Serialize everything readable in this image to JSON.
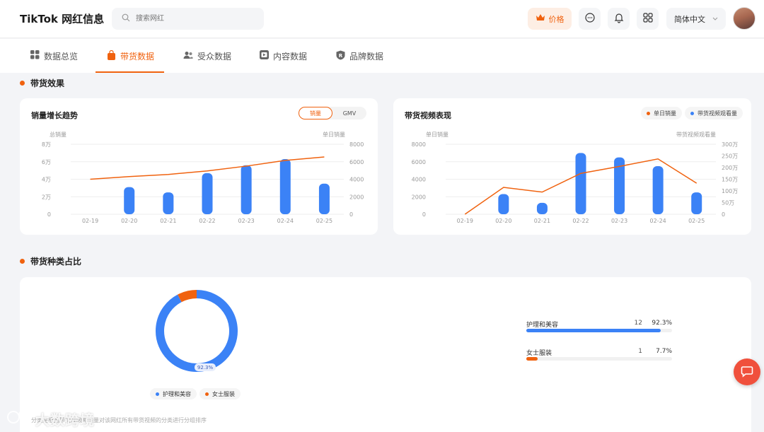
{
  "header": {
    "title": "TikTok 网红信息",
    "search_placeholder": "搜索网红",
    "price_label": "价格",
    "language": "简体中文"
  },
  "tabs": [
    {
      "label": "数据总览",
      "icon": "grid-icon"
    },
    {
      "label": "带货数据",
      "icon": "bag-icon",
      "active": true
    },
    {
      "label": "受众数据",
      "icon": "people-icon"
    },
    {
      "label": "内容数据",
      "icon": "video-icon"
    },
    {
      "label": "品牌数据",
      "icon": "brand-icon"
    }
  ],
  "section1": {
    "title": "带货效果"
  },
  "section2": {
    "title": "带货种类占比"
  },
  "colors": {
    "accent": "#f0620f",
    "blue": "#3b82f6"
  },
  "sales_chart": {
    "title": "销量增长趋势",
    "toggle": {
      "sales": "销量",
      "gmv": "GMV"
    },
    "left_axis_title": "总销量",
    "right_axis_title": "单日销量"
  },
  "video_chart": {
    "title": "带货视频表现",
    "legend_daily": "单日销量",
    "legend_views": "带货视频观看量",
    "left_axis_title": "单日销量",
    "right_axis_title": "带货视频观看量"
  },
  "chart_data": [
    {
      "type": "bar",
      "title": "销量增长趋势",
      "categories": [
        "02-19",
        "02-20",
        "02-21",
        "02-22",
        "02-23",
        "02-24",
        "02-25"
      ],
      "left_ticks": [
        "0",
        "2万",
        "4万",
        "6万",
        "8万"
      ],
      "right_ticks": [
        "0",
        "2000",
        "4000",
        "6000",
        "8000"
      ],
      "series": [
        {
          "name": "单日销量",
          "axis": "right",
          "kind": "bar",
          "values": [
            0,
            3100,
            2500,
            4700,
            5600,
            6300,
            3500
          ]
        },
        {
          "name": "总销量",
          "axis": "left",
          "kind": "line",
          "values": [
            40000,
            43000,
            45500,
            49500,
            55000,
            61500,
            65500
          ]
        }
      ],
      "ylim_left": [
        0,
        80000
      ],
      "ylim_right": [
        0,
        8000
      ],
      "grid": true
    },
    {
      "type": "bar",
      "title": "带货视频表现",
      "categories": [
        "02-19",
        "02-20",
        "02-21",
        "02-22",
        "02-23",
        "02-24",
        "02-25"
      ],
      "left_ticks": [
        "0",
        "2000",
        "4000",
        "6000",
        "8000"
      ],
      "right_ticks": [
        "0",
        "50万",
        "100万",
        "150万",
        "200万",
        "250万",
        "300万"
      ],
      "series": [
        {
          "name": "单日销量",
          "axis": "left",
          "kind": "bar",
          "values": [
            0,
            2300,
            1300,
            7000,
            6500,
            5500,
            2500
          ]
        },
        {
          "name": "带货视频观看量",
          "axis": "right",
          "kind": "line",
          "values": [
            0,
            1150000,
            950000,
            1750000,
            2050000,
            2370000,
            1330000
          ]
        }
      ],
      "ylim_left": [
        0,
        8000
      ],
      "ylim_right": [
        0,
        3000000
      ],
      "grid": true
    },
    {
      "type": "pie",
      "title": "带货种类占比",
      "categories": [
        "护理和美容",
        "女士服装"
      ],
      "values": [
        12,
        1
      ],
      "percents": [
        "92.3%",
        "7.7%"
      ],
      "colors": [
        "#3b82f6",
        "#f0620f"
      ],
      "donut_label": "92.3%"
    }
  ],
  "distribution": [
    {
      "label": "护理和美容",
      "count": "12",
      "pct": "92.3%",
      "fraction": 0.923,
      "color": "#3b82f6"
    },
    {
      "label": "女士服装",
      "count": "1",
      "pct": "7.7%",
      "fraction": 0.077,
      "color": "#f0620f"
    }
  ],
  "footnote": "分类是根据带货视频和销量对该网红所有带货视频的分类进行分组排序",
  "watermark": "大数跨境"
}
